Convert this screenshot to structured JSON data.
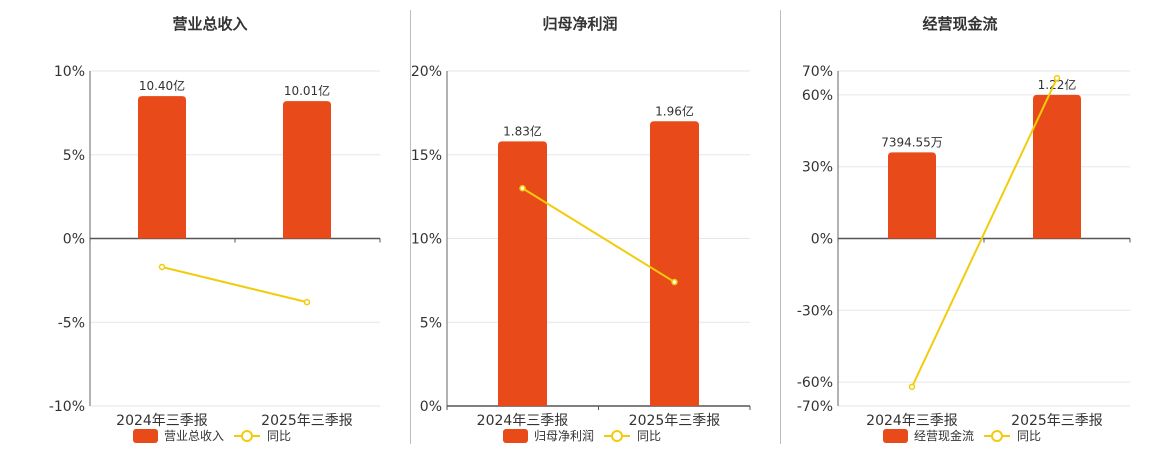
{
  "colors": {
    "bar": "#E84A1A",
    "line": "#F2CC0C",
    "axis": "#333333",
    "grid": "#E6E6EE",
    "text": "#333333"
  },
  "category_labels": [
    "2024年三季报",
    "2025年三季报"
  ],
  "chart_data": [
    {
      "type": "bar",
      "title": "营业总收入",
      "categories": [
        "2024年三季报",
        "2025年三季报"
      ],
      "series": [
        {
          "name": "营业总收入",
          "type": "bar",
          "value_labels": [
            "10.40亿",
            "10.01亿"
          ],
          "values_pct": [
            8.5,
            8.2
          ]
        },
        {
          "name": "同比",
          "type": "line",
          "values_pct": [
            -1.7,
            -3.8
          ]
        }
      ],
      "yaxis": {
        "min": -10,
        "max": 10,
        "ticks": [
          10,
          5,
          0,
          -5,
          -10
        ],
        "tick_labels": [
          "10%",
          "5%",
          "0%",
          "-5%",
          "-10%"
        ]
      },
      "legend": {
        "position": "bottom",
        "items": [
          "营业总收入",
          "同比"
        ]
      }
    },
    {
      "type": "bar",
      "title": "归母净利润",
      "categories": [
        "2024年三季报",
        "2025年三季报"
      ],
      "series": [
        {
          "name": "归母净利润",
          "type": "bar",
          "value_labels": [
            "1.83亿",
            "1.96亿"
          ],
          "values_pct": [
            15.8,
            17.0
          ]
        },
        {
          "name": "同比",
          "type": "line",
          "values_pct": [
            13.0,
            7.4
          ]
        }
      ],
      "yaxis": {
        "min": 0,
        "max": 20,
        "ticks": [
          20,
          15,
          10,
          5,
          0
        ],
        "tick_labels": [
          "20%",
          "15%",
          "10%",
          "5%",
          "0%"
        ]
      },
      "legend": {
        "position": "bottom",
        "items": [
          "归母净利润",
          "同比"
        ]
      }
    },
    {
      "type": "bar",
      "title": "经营现金流",
      "categories": [
        "2024年三季报",
        "2025年三季报"
      ],
      "series": [
        {
          "name": "经营现金流",
          "type": "bar",
          "value_labels": [
            "7394.55万",
            "1.22亿"
          ],
          "values_pct": [
            36,
            60
          ]
        },
        {
          "name": "同比",
          "type": "line",
          "values_pct": [
            -62,
            67
          ]
        }
      ],
      "yaxis": {
        "min": -70,
        "max": 70,
        "ticks": [
          70,
          60,
          30,
          0,
          -30,
          -60,
          -70
        ],
        "tick_labels": [
          "70%",
          "60%",
          "30%",
          "0%",
          "-30%",
          "-60%",
          "-70%"
        ]
      },
      "legend": {
        "position": "bottom",
        "items": [
          "经营现金流",
          "同比"
        ]
      }
    }
  ]
}
